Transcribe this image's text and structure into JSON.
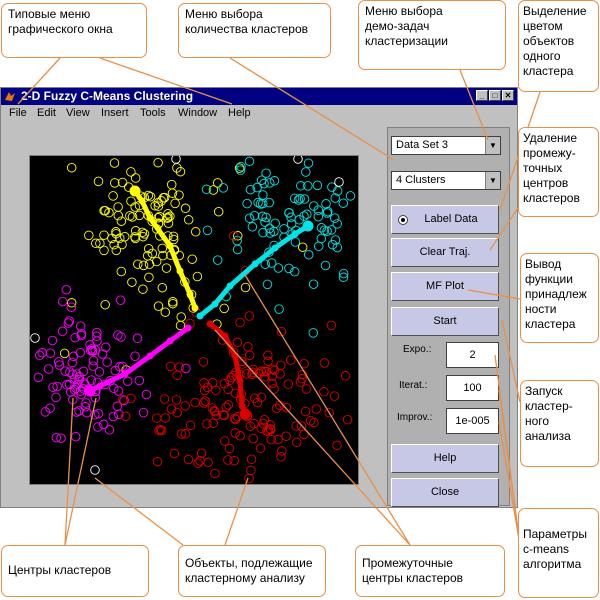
{
  "window": {
    "title": "2-D Fuzzy C-Means Clustering",
    "menu": [
      "File",
      "Edit",
      "View",
      "Insert",
      "Tools",
      "Window",
      "Help"
    ],
    "controls": {
      "min_symbol": "_",
      "max_symbol": "□",
      "close_symbol": "✕"
    }
  },
  "panel": {
    "dataset_select": "Data Set 3",
    "clusters_select": "4 Clusters",
    "label_data": "Label Data",
    "clear_traj": "Clear Traj.",
    "mf_plot": "MF Plot",
    "start": "Start",
    "expo_label": "Expo.:",
    "expo_value": "2",
    "iterat_label": "Iterat.:",
    "iterat_value": "100",
    "improv_label": "Improv.:",
    "improv_value": "1e-005",
    "help": "Help",
    "close": "Close"
  },
  "callouts": {
    "window_menus": "Типовые меню\nграфического окна",
    "cluster_count_menu": "Меню выбора\nколичества кластеров",
    "demo_menu": "Меню выбора\nдемо-задач\nкластеризации",
    "color_highlight": "Выделение\nцветом\nобъектов\nодного\nкластера",
    "clear_intermediate": "Удаление\nпромежу-\nточных\nцентров\nкластеров",
    "mf_output": "Вывод\nфункции\nпринадлеж\nности\nкластера",
    "start_analysis": "Запуск\nкластер-\nного\nанализа",
    "params": "Параметры\nc-means\nалгоритма",
    "cluster_centers": "Центры кластеров",
    "objects": "Объекты, подлежащие\nкластерному анализу",
    "intermediate_centers": "Промежуточные\nцентры кластеров"
  },
  "colors": {
    "title_bar": "#000080",
    "callout_border": "#e8904a",
    "button_face": "#c7c7e6",
    "cluster_yellow": "#ffff00",
    "cluster_cyan": "#00e5e5",
    "cluster_magenta": "#ff00ff",
    "cluster_red": "#dd0000",
    "cluster_white": "#ffffff"
  }
}
